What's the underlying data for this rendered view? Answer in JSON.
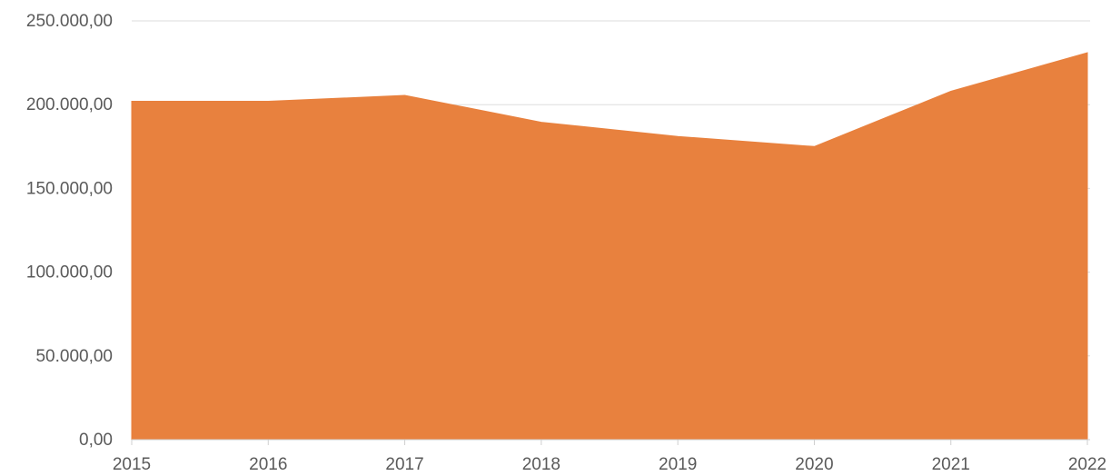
{
  "chart_data": {
    "type": "area",
    "title": "",
    "xlabel": "",
    "ylabel": "",
    "x": [
      "2015",
      "2016",
      "2017",
      "2018",
      "2019",
      "2020",
      "2021",
      "2022"
    ],
    "series": [
      {
        "values": [
          202000,
          202000,
          205500,
          189500,
          181000,
          175000,
          208000,
          231000
        ],
        "color": "#e8813e"
      }
    ],
    "ylim": [
      0,
      250000
    ],
    "yticks": [
      0,
      50000,
      100000,
      150000,
      200000,
      250000
    ],
    "ytick_labels": [
      "0,00",
      "50.000,00",
      "100.000,00",
      "150.000,00",
      "200.000,00",
      "250.000,00"
    ],
    "grid": true,
    "legend": "none"
  }
}
